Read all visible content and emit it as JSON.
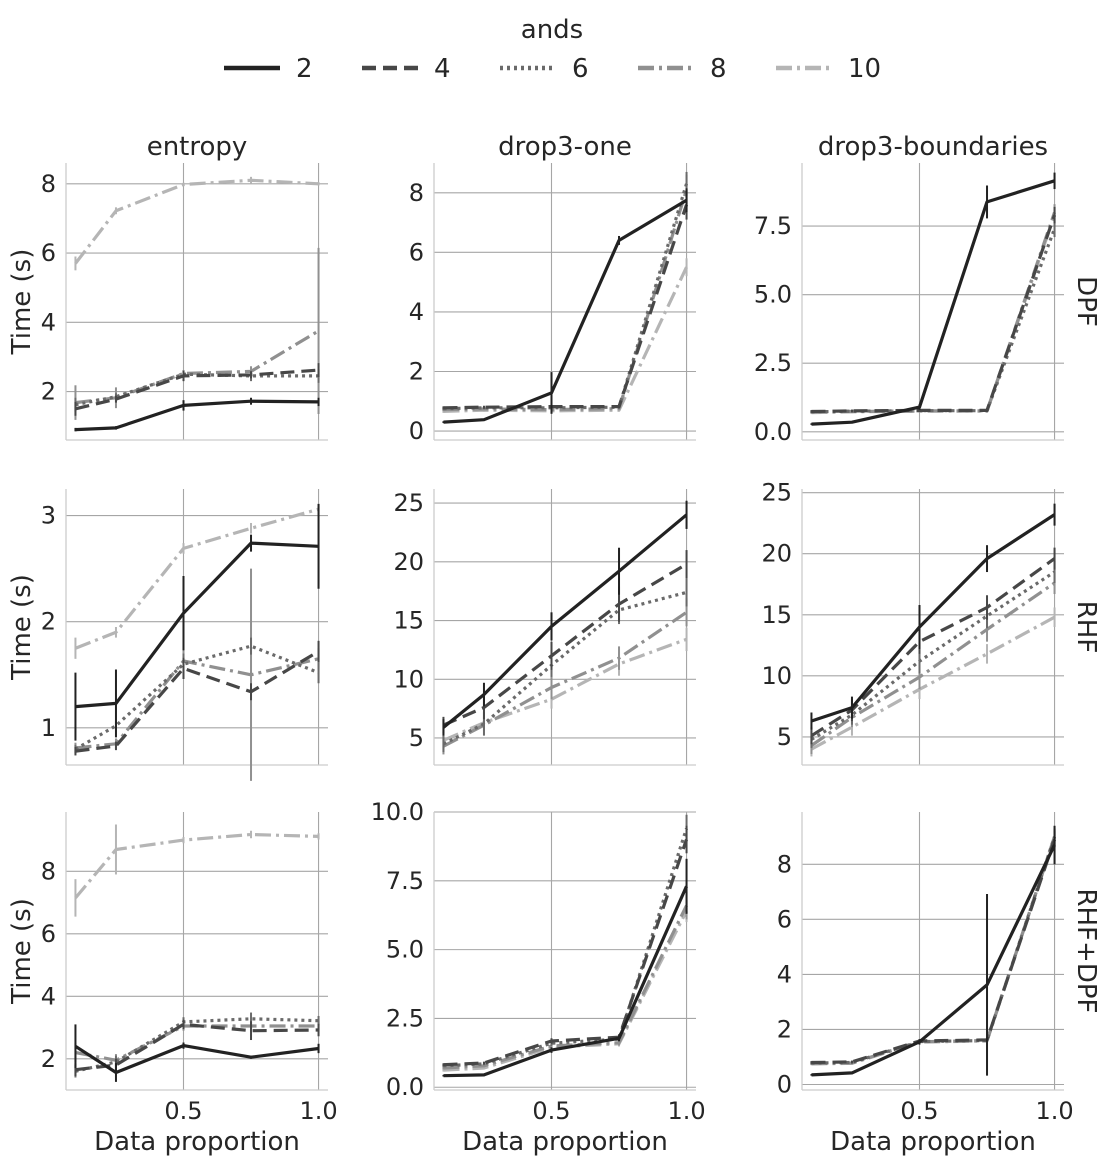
{
  "legend": {
    "title": "ands",
    "entries": [
      {
        "label": "2",
        "color": "#222222",
        "dash": "solid"
      },
      {
        "label": "4",
        "color": "#474747",
        "dash": "dashed"
      },
      {
        "label": "6",
        "color": "#6a6a6a",
        "dash": "dotted"
      },
      {
        "label": "8",
        "color": "#909090",
        "dash": "dashdot"
      },
      {
        "label": "10",
        "color": "#b5b5b5",
        "dash": "dashdot"
      }
    ]
  },
  "columns": [
    "entropy",
    "drop3-one",
    "drop3-boundaries"
  ],
  "rows": [
    "DPF",
    "RHF",
    "RHF+DPF"
  ],
  "ylabel": "Time (s)",
  "xlabel": "Data proportion",
  "chart_data": [
    {
      "type": "line",
      "row": "DPF",
      "col": "entropy",
      "x": [
        0.1,
        0.25,
        0.5,
        0.75,
        1.0
      ],
      "ylim": [
        0.6,
        8.6
      ],
      "yticks": [
        "2",
        "4",
        "6",
        "8"
      ],
      "ytick_values": [
        2,
        4,
        6,
        8
      ],
      "xticks": [
        "0.5",
        "1.0"
      ],
      "xtick_values": [
        0.5,
        1.0
      ],
      "series": [
        {
          "name": "2",
          "values": [
            0.9,
            0.95,
            1.6,
            1.72,
            1.7
          ],
          "err": [
            0.05,
            0.05,
            0.15,
            0.1,
            0.12
          ]
        },
        {
          "name": "4",
          "values": [
            1.5,
            1.78,
            2.45,
            2.48,
            2.62
          ],
          "err": [
            0.2,
            0.1,
            0.15,
            0.1,
            0.2
          ]
        },
        {
          "name": "6",
          "values": [
            1.62,
            1.85,
            2.5,
            2.45,
            2.45
          ],
          "err": [
            0.2,
            0.1,
            0.1,
            0.15,
            0.2
          ]
        },
        {
          "name": "8",
          "values": [
            1.68,
            1.82,
            2.52,
            2.58,
            3.75
          ],
          "err": [
            0.5,
            0.3,
            0.1,
            0.15,
            2.4
          ]
        },
        {
          "name": "10",
          "values": [
            5.7,
            7.22,
            7.98,
            8.1,
            8.0
          ],
          "err": [
            0.2,
            0.1,
            0.05,
            0.1,
            0.05
          ]
        }
      ]
    },
    {
      "type": "line",
      "row": "DPF",
      "col": "drop3-one",
      "x": [
        0.1,
        0.25,
        0.5,
        0.75,
        1.0
      ],
      "ylim": [
        -0.3,
        9.0
      ],
      "yticks": [
        "0",
        "2",
        "4",
        "6",
        "8"
      ],
      "ytick_values": [
        0,
        2,
        4,
        6,
        8
      ],
      "xticks": [
        "0.5",
        "1.0"
      ],
      "xtick_values": [
        0.5,
        1.0
      ],
      "series": [
        {
          "name": "2",
          "values": [
            0.3,
            0.38,
            1.28,
            6.4,
            7.75
          ],
          "err": [
            0.03,
            0.03,
            0.7,
            0.15,
            0.4
          ]
        },
        {
          "name": "4",
          "values": [
            0.78,
            0.8,
            0.82,
            0.82,
            7.6
          ],
          "err": [
            0.05,
            0.05,
            0.05,
            0.05,
            0.5
          ]
        },
        {
          "name": "6",
          "values": [
            0.75,
            0.78,
            0.78,
            0.8,
            8.3
          ],
          "err": [
            0.05,
            0.05,
            0.05,
            0.05,
            0.4
          ]
        },
        {
          "name": "8",
          "values": [
            0.72,
            0.74,
            0.72,
            0.75,
            8.1
          ],
          "err": [
            0.05,
            0.05,
            0.05,
            0.05,
            0.5
          ]
        },
        {
          "name": "10",
          "values": [
            0.66,
            0.7,
            0.68,
            0.7,
            5.5
          ],
          "err": [
            0.05,
            0.05,
            0.05,
            0.05,
            0.3
          ]
        }
      ]
    },
    {
      "type": "line",
      "row": "DPF",
      "col": "drop3-boundaries",
      "x": [
        0.1,
        0.25,
        0.5,
        0.75,
        1.0
      ],
      "ylim": [
        -0.3,
        9.8
      ],
      "yticks": [
        "0.0",
        "2.5",
        "5.0",
        "7.5"
      ],
      "ytick_values": [
        0,
        2.5,
        5,
        7.5
      ],
      "xticks": [
        "0.5",
        "1.0"
      ],
      "xtick_values": [
        0.5,
        1.0
      ],
      "series": [
        {
          "name": "2",
          "values": [
            0.28,
            0.35,
            0.9,
            8.38,
            9.15
          ],
          "err": [
            0.03,
            0.03,
            0.1,
            0.6,
            0.3
          ]
        },
        {
          "name": "4",
          "values": [
            0.74,
            0.76,
            0.78,
            0.78,
            7.9
          ],
          "err": [
            0.05,
            0.05,
            0.05,
            0.05,
            0.3
          ]
        },
        {
          "name": "6",
          "values": [
            0.73,
            0.75,
            0.77,
            0.77,
            7.4
          ],
          "err": [
            0.05,
            0.05,
            0.05,
            0.05,
            0.3
          ]
        },
        {
          "name": "8",
          "values": [
            0.72,
            0.74,
            0.76,
            0.76,
            8.0
          ],
          "err": [
            0.05,
            0.05,
            0.05,
            0.05,
            0.3
          ]
        },
        {
          "name": "10",
          "values": [
            0.7,
            0.73,
            0.75,
            0.75,
            7.9
          ],
          "err": [
            0.05,
            0.05,
            0.05,
            0.05,
            0.3
          ]
        }
      ]
    },
    {
      "type": "line",
      "row": "RHF",
      "col": "entropy",
      "x": [
        0.1,
        0.25,
        0.5,
        0.75,
        1.0
      ],
      "ylim": [
        0.65,
        3.25
      ],
      "yticks": [
        "1",
        "2",
        "3"
      ],
      "ytick_values": [
        1,
        2,
        3
      ],
      "xticks": [
        "0.5",
        "1.0"
      ],
      "xtick_values": [
        0.5,
        1.0
      ],
      "series": [
        {
          "name": "2",
          "values": [
            1.2,
            1.23,
            2.08,
            2.74,
            2.71
          ],
          "err": [
            0.32,
            0.32,
            0.35,
            0.08,
            0.4
          ]
        },
        {
          "name": "4",
          "values": [
            0.78,
            0.83,
            1.56,
            1.34,
            1.72
          ],
          "err": [
            0.04,
            0.04,
            0.1,
            0.08,
            0.1
          ]
        },
        {
          "name": "6",
          "values": [
            0.8,
            1.02,
            1.6,
            1.77,
            1.52
          ],
          "err": [
            0.04,
            0.04,
            0.1,
            0.08,
            0.1
          ]
        },
        {
          "name": "8",
          "values": [
            0.81,
            0.85,
            1.63,
            1.5,
            1.65
          ],
          "err": [
            0.05,
            0.05,
            0.1,
            1.0,
            0.1
          ]
        },
        {
          "name": "10",
          "values": [
            1.75,
            1.9,
            2.69,
            2.88,
            3.06
          ],
          "err": [
            0.1,
            0.05,
            0.05,
            0.05,
            0.05
          ]
        }
      ]
    },
    {
      "type": "line",
      "row": "RHF",
      "col": "drop3-one",
      "x": [
        0.1,
        0.25,
        0.5,
        0.75,
        1.0
      ],
      "ylim": [
        2.7,
        26.2
      ],
      "yticks": [
        "5",
        "10",
        "15",
        "20",
        "25"
      ],
      "ytick_values": [
        5,
        10,
        15,
        20,
        25
      ],
      "xticks": [
        "0.5",
        "1.0"
      ],
      "xtick_values": [
        0.5,
        1.0
      ],
      "series": [
        {
          "name": "2",
          "values": [
            5.9,
            8.7,
            14.5,
            19.2,
            24.0
          ],
          "err": [
            0.7,
            1.0,
            1.2,
            2.0,
            1.2
          ]
        },
        {
          "name": "4",
          "values": [
            6.1,
            7.6,
            12.0,
            16.4,
            19.8
          ],
          "err": [
            0.7,
            1.0,
            1.2,
            1.5,
            1.2
          ]
        },
        {
          "name": "6",
          "values": [
            4.5,
            6.2,
            11.2,
            15.9,
            17.4
          ],
          "err": [
            0.7,
            1.0,
            1.0,
            1.2,
            1.2
          ]
        },
        {
          "name": "8",
          "values": [
            4.3,
            6.1,
            9.3,
            11.8,
            15.7
          ],
          "err": [
            0.7,
            0.5,
            1.0,
            1.0,
            1.2
          ]
        },
        {
          "name": "10",
          "values": [
            4.8,
            6.3,
            8.3,
            11.3,
            13.4
          ],
          "err": [
            0.7,
            0.5,
            0.8,
            1.0,
            1.0
          ]
        }
      ]
    },
    {
      "type": "line",
      "row": "RHF",
      "col": "drop3-boundaries",
      "x": [
        0.1,
        0.25,
        0.5,
        0.75,
        1.0
      ],
      "ylim": [
        2.7,
        25.3
      ],
      "yticks": [
        "5",
        "10",
        "15",
        "20",
        "25"
      ],
      "ytick_values": [
        5,
        10,
        15,
        20,
        25
      ],
      "xticks": [
        "0.5",
        "1.0"
      ],
      "xtick_values": [
        0.5,
        1.0
      ],
      "series": [
        {
          "name": "2",
          "values": [
            6.3,
            7.4,
            14.0,
            19.6,
            23.2
          ],
          "err": [
            0.7,
            0.9,
            1.8,
            1.1,
            0.9
          ]
        },
        {
          "name": "4",
          "values": [
            5.1,
            7.2,
            12.8,
            15.6,
            19.6
          ],
          "err": [
            0.7,
            0.9,
            1.0,
            1.0,
            0.9
          ]
        },
        {
          "name": "6",
          "values": [
            4.8,
            6.8,
            11.2,
            14.9,
            18.5
          ],
          "err": [
            0.7,
            0.8,
            1.0,
            1.0,
            0.9
          ]
        },
        {
          "name": "8",
          "values": [
            4.3,
            6.6,
            9.9,
            13.8,
            17.6
          ],
          "err": [
            0.7,
            0.8,
            1.0,
            1.0,
            0.9
          ]
        },
        {
          "name": "10",
          "values": [
            4.0,
            5.8,
            8.9,
            11.8,
            14.8
          ],
          "err": [
            0.6,
            0.7,
            0.8,
            0.8,
            0.8
          ]
        }
      ]
    },
    {
      "type": "line",
      "row": "RHF+DPF",
      "col": "entropy",
      "x": [
        0.1,
        0.25,
        0.5,
        0.75,
        1.0
      ],
      "ylim": [
        1.0,
        9.9
      ],
      "yticks": [
        "2",
        "4",
        "6",
        "8"
      ],
      "ytick_values": [
        2,
        4,
        6,
        8
      ],
      "xticks": [
        "0.5",
        "1.0"
      ],
      "xtick_values": [
        0.5,
        1.0
      ],
      "series": [
        {
          "name": "2",
          "values": [
            2.4,
            1.56,
            2.42,
            2.05,
            2.33
          ],
          "err": [
            0.7,
            0.3,
            0.1,
            0.05,
            0.15
          ]
        },
        {
          "name": "4",
          "values": [
            1.65,
            1.8,
            3.1,
            2.9,
            2.92
          ],
          "err": [
            0.2,
            0.2,
            0.15,
            0.3,
            0.2
          ]
        },
        {
          "name": "6",
          "values": [
            1.6,
            1.9,
            3.18,
            3.28,
            3.22
          ],
          "err": [
            0.2,
            0.2,
            0.15,
            0.2,
            0.15
          ]
        },
        {
          "name": "8",
          "values": [
            2.2,
            1.95,
            3.05,
            3.05,
            3.05
          ],
          "err": [
            0.3,
            0.2,
            0.15,
            0.2,
            0.15
          ]
        },
        {
          "name": "10",
          "values": [
            7.15,
            8.7,
            9.0,
            9.18,
            9.12
          ],
          "err": [
            0.6,
            0.8,
            0.1,
            0.12,
            0.1
          ]
        }
      ]
    },
    {
      "type": "line",
      "row": "RHF+DPF",
      "col": "drop3-one",
      "x": [
        0.1,
        0.25,
        0.5,
        0.75,
        1.0
      ],
      "ylim": [
        -0.1,
        10.0
      ],
      "yticks": [
        "0.0",
        "2.5",
        "5.0",
        "7.5",
        "10.0"
      ],
      "ytick_values": [
        0,
        2.5,
        5,
        7.5,
        10
      ],
      "xticks": [
        "0.5",
        "1.0"
      ],
      "xtick_values": [
        0.5,
        1.0
      ],
      "series": [
        {
          "name": "2",
          "values": [
            0.42,
            0.45,
            1.35,
            1.78,
            7.3
          ],
          "err": [
            0.03,
            0.03,
            0.1,
            0.1,
            1.0
          ]
        },
        {
          "name": "4",
          "values": [
            0.82,
            0.88,
            1.68,
            1.82,
            9.0
          ],
          "err": [
            0.05,
            0.05,
            0.1,
            0.1,
            0.5
          ]
        },
        {
          "name": "6",
          "values": [
            0.78,
            0.85,
            1.6,
            1.75,
            9.4
          ],
          "err": [
            0.05,
            0.05,
            0.1,
            0.1,
            0.5
          ]
        },
        {
          "name": "8",
          "values": [
            0.7,
            0.78,
            1.5,
            1.62,
            6.6
          ],
          "err": [
            0.05,
            0.05,
            0.1,
            0.1,
            0.5
          ]
        },
        {
          "name": "10",
          "values": [
            0.62,
            0.7,
            1.45,
            1.58,
            6.4
          ],
          "err": [
            0.05,
            0.05,
            0.1,
            0.1,
            0.4
          ]
        }
      ]
    },
    {
      "type": "line",
      "row": "RHF+DPF",
      "col": "drop3-boundaries",
      "x": [
        0.1,
        0.25,
        0.5,
        0.75,
        1.0
      ],
      "ylim": [
        -0.2,
        9.9
      ],
      "yticks": [
        "0",
        "2",
        "4",
        "6",
        "8"
      ],
      "ytick_values": [
        0,
        2,
        4,
        6,
        8
      ],
      "xticks": [
        "0.5",
        "1.0"
      ],
      "xtick_values": [
        0.5,
        1.0
      ],
      "series": [
        {
          "name": "2",
          "values": [
            0.35,
            0.42,
            1.55,
            3.62,
            8.7
          ],
          "err": [
            0.03,
            0.03,
            0.1,
            3.3,
            0.7
          ]
        },
        {
          "name": "4",
          "values": [
            0.8,
            0.82,
            1.58,
            1.62,
            8.9
          ],
          "err": [
            0.05,
            0.05,
            0.05,
            0.05,
            0.3
          ]
        },
        {
          "name": "6",
          "values": [
            0.78,
            0.8,
            1.56,
            1.6,
            9.0
          ],
          "err": [
            0.05,
            0.05,
            0.05,
            0.05,
            0.3
          ]
        },
        {
          "name": "8",
          "values": [
            0.76,
            0.78,
            1.55,
            1.6,
            9.0
          ],
          "err": [
            0.05,
            0.05,
            0.05,
            0.05,
            0.3
          ]
        },
        {
          "name": "10",
          "values": [
            0.75,
            0.77,
            1.54,
            1.58,
            9.0
          ],
          "err": [
            0.05,
            0.05,
            0.05,
            0.05,
            0.3
          ]
        }
      ]
    }
  ]
}
